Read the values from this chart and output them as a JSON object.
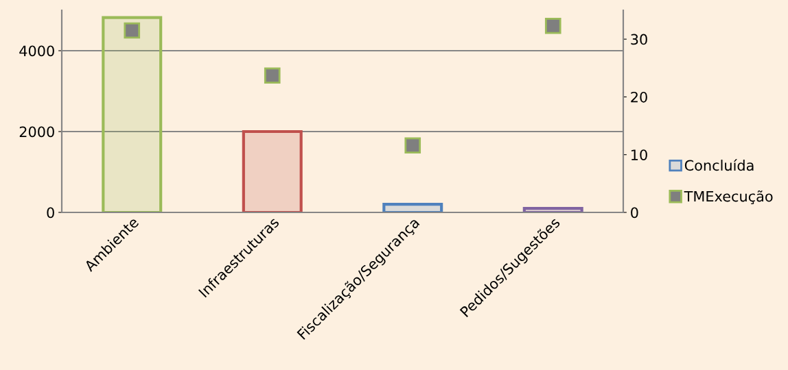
{
  "chart_data": {
    "type": "bar",
    "categories": [
      "Ambiente",
      "Infraestruturas",
      "Fiscalização/Segurança",
      "Pedidos/Sugestões"
    ],
    "series": [
      {
        "name": "Concluída",
        "colors": [
          "#9bbb59",
          "#c0504d",
          "#4f81bd",
          "#8064a2"
        ],
        "color": "#4f81bd",
        "values": [
          4820,
          2000,
          200,
          100
        ]
      },
      {
        "name": "TMExecução",
        "type": "scatter",
        "axis": "y2",
        "color": "#7f7f7f",
        "marker": "square",
        "values": [
          31.5,
          23.7,
          11.6,
          32.3
        ]
      }
    ],
    "ylim": [
      0,
      5000
    ],
    "yticks": [
      0,
      2000,
      4000
    ],
    "y2lim": [
      0,
      35
    ],
    "y2ticks": [
      0,
      10,
      20,
      30
    ],
    "grid": "y",
    "legend": "right"
  }
}
